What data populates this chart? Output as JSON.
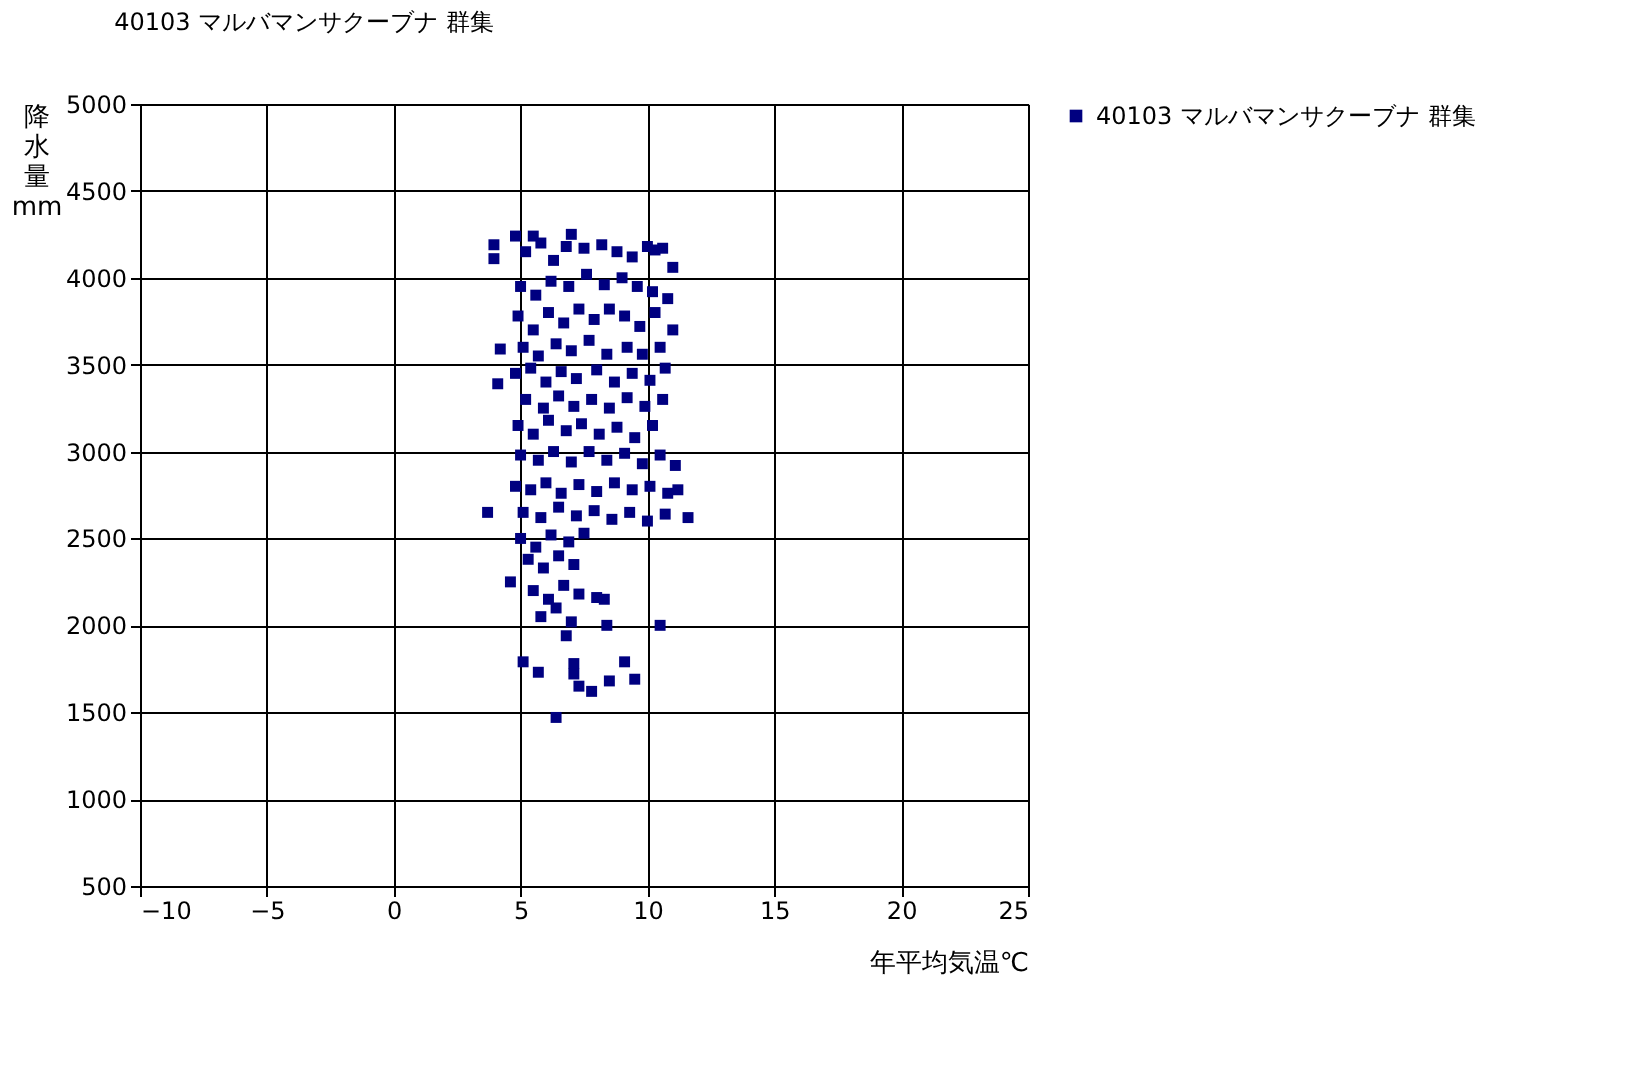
{
  "chart_data": {
    "type": "scatter",
    "title": "40103 マルバマンサクーブナ 群集",
    "xlabel": "年平均気温℃",
    "ylabel": "降水量 mm",
    "xlim": [
      -10,
      25
    ],
    "xticks": [
      -10,
      -5,
      0,
      5,
      10,
      15,
      20,
      25
    ],
    "ylim": [
      500,
      5000
    ],
    "yticks": [
      500,
      1000,
      1500,
      2000,
      2500,
      3000,
      3500,
      4000,
      4500,
      5000
    ],
    "grid": true,
    "legend": "right",
    "marker": "square",
    "series": [
      {
        "name": "40103 マルバマンサクーブナ 群集",
        "color": "#000080",
        "x": [
          5.2,
          5.8,
          6.3,
          6.8,
          7.5,
          8.2,
          8.8,
          9.4,
          10.0,
          10.6,
          5.0,
          5.6,
          6.2,
          6.9,
          7.6,
          8.3,
          9.0,
          9.6,
          10.2,
          10.8,
          4.9,
          5.5,
          6.1,
          6.7,
          7.3,
          7.9,
          8.5,
          9.1,
          9.7,
          10.3,
          11.0,
          5.1,
          5.7,
          6.4,
          7.0,
          7.7,
          8.4,
          9.2,
          9.8,
          10.5,
          4.8,
          5.4,
          6.0,
          6.6,
          7.2,
          8.0,
          8.7,
          9.4,
          10.1,
          10.7,
          5.2,
          5.9,
          6.5,
          7.1,
          7.8,
          8.5,
          9.2,
          9.9,
          10.6,
          4.9,
          5.5,
          6.1,
          6.8,
          7.4,
          8.1,
          8.8,
          9.5,
          10.2,
          5.0,
          5.7,
          6.3,
          7.0,
          7.7,
          8.4,
          9.1,
          9.8,
          10.5,
          11.1,
          4.8,
          5.4,
          6.0,
          6.6,
          7.3,
          8.0,
          8.7,
          9.4,
          10.1,
          10.8,
          11.2,
          5.1,
          5.8,
          6.5,
          7.2,
          7.9,
          8.6,
          9.3,
          10.0,
          10.7,
          5.0,
          5.6,
          6.2,
          6.9,
          7.5,
          5.3,
          5.9,
          6.5,
          7.1,
          5.5,
          6.1,
          6.7,
          7.3,
          5.8,
          6.4,
          7.0,
          3.95,
          3.95,
          4.1,
          3.7,
          4.2,
          4.6,
          5.1,
          5.7,
          6.4,
          6.8,
          7.1,
          7.1,
          7.3,
          7.8,
          8.3,
          8.0,
          8.4,
          9.1,
          8.5,
          9.5,
          10.5,
          11.6,
          11.0,
          10.3,
          4.8,
          5.5,
          7.0
        ],
        "values": [
          4150,
          4200,
          4100,
          4180,
          4170,
          4190,
          4150,
          4120,
          4180,
          4170,
          3950,
          3900,
          3980,
          3950,
          4020,
          3960,
          4000,
          3950,
          3920,
          3880,
          3780,
          3700,
          3800,
          3740,
          3820,
          3760,
          3820,
          3780,
          3720,
          3800,
          3700,
          3600,
          3550,
          3620,
          3580,
          3640,
          3560,
          3600,
          3560,
          3600,
          3450,
          3480,
          3400,
          3460,
          3420,
          3470,
          3400,
          3450,
          3410,
          3480,
          3300,
          3250,
          3320,
          3260,
          3300,
          3250,
          3310,
          3260,
          3300,
          3150,
          3100,
          3180,
          3120,
          3160,
          3100,
          3140,
          3080,
          3150,
          2980,
          2950,
          3000,
          2940,
          3000,
          2950,
          2990,
          2930,
          2980,
          2920,
          2800,
          2780,
          2820,
          2760,
          2810,
          2770,
          2820,
          2780,
          2800,
          2760,
          2780,
          2650,
          2620,
          2680,
          2630,
          2660,
          2610,
          2650,
          2600,
          2640,
          2500,
          2450,
          2520,
          2480,
          2530,
          2380,
          2330,
          2400,
          2350,
          2200,
          2150,
          2230,
          2180,
          2050,
          2100,
          2020,
          4190,
          4110,
          3390,
          2650,
          3590,
          2250,
          1790,
          1730,
          1470,
          1940,
          1780,
          1720,
          1650,
          1620,
          2150,
          2160,
          2000,
          1790,
          1680,
          1690,
          2000,
          2620,
          4060,
          4160,
          4240,
          4240,
          4250
        ]
      }
    ]
  }
}
